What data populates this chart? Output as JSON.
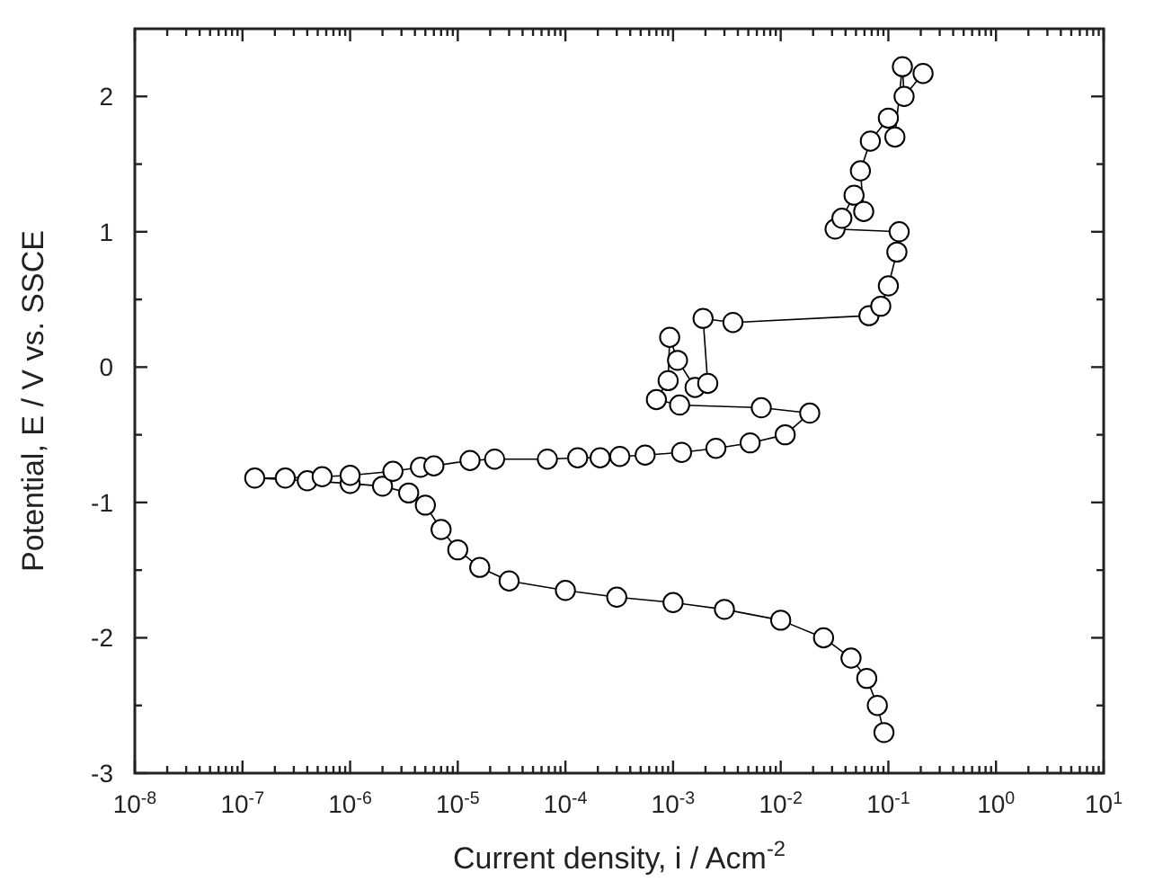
{
  "chart_data": {
    "type": "line",
    "xlabel": "Current density, i / Acm$^{-2}$",
    "ylabel": "Potential, E / V vs. SSCE",
    "log": "x",
    "marker": "circle",
    "line_style": "solid",
    "xlim": [
      1e-08,
      10
    ],
    "ylim": [
      -3,
      2.5
    ],
    "xticks": [
      {
        "value": 1e-08,
        "label": "10$^{-8}$"
      },
      {
        "value": 2e-08,
        "label": null
      },
      {
        "value": 3e-08,
        "label": null
      },
      {
        "value": 4e-08,
        "label": null
      },
      {
        "value": 5e-08,
        "label": null
      },
      {
        "value": 6e-08,
        "label": null
      },
      {
        "value": 7e-08,
        "label": null
      },
      {
        "value": 8e-08,
        "label": null
      },
      {
        "value": 9e-08,
        "label": null
      },
      {
        "value": 1e-07,
        "label": "10$^{-7}$"
      },
      {
        "value": 2e-07,
        "label": null
      },
      {
        "value": 3e-07,
        "label": null
      },
      {
        "value": 4e-07,
        "label": null
      },
      {
        "value": 5e-07,
        "label": null
      },
      {
        "value": 6e-07,
        "label": null
      },
      {
        "value": 7e-07,
        "label": null
      },
      {
        "value": 8e-07,
        "label": null
      },
      {
        "value": 9e-07,
        "label": null
      },
      {
        "value": 1e-06,
        "label": "10$^{-6}$"
      },
      {
        "value": 2e-06,
        "label": null
      },
      {
        "value": 3e-06,
        "label": null
      },
      {
        "value": 4e-06,
        "label": null
      },
      {
        "value": 5e-06,
        "label": null
      },
      {
        "value": 6e-06,
        "label": null
      },
      {
        "value": 7e-06,
        "label": null
      },
      {
        "value": 8e-06,
        "label": null
      },
      {
        "value": 9e-06,
        "label": null
      },
      {
        "value": 1e-05,
        "label": "10$^{-5}$"
      },
      {
        "value": 2e-05,
        "label": null
      },
      {
        "value": 3e-05,
        "label": null
      },
      {
        "value": 4e-05,
        "label": null
      },
      {
        "value": 5e-05,
        "label": null
      },
      {
        "value": 6e-05,
        "label": null
      },
      {
        "value": 7e-05,
        "label": null
      },
      {
        "value": 8e-05,
        "label": null
      },
      {
        "value": 9e-05,
        "label": null
      },
      {
        "value": 0.0001,
        "label": "10$^{-4}$"
      },
      {
        "value": 0.0002,
        "label": null
      },
      {
        "value": 0.0003,
        "label": null
      },
      {
        "value": 0.0004,
        "label": null
      },
      {
        "value": 0.0005,
        "label": null
      },
      {
        "value": 0.0006,
        "label": null
      },
      {
        "value": 0.0007,
        "label": null
      },
      {
        "value": 0.0008,
        "label": null
      },
      {
        "value": 0.0009,
        "label": null
      },
      {
        "value": 0.001,
        "label": "10$^{-3}$"
      },
      {
        "value": 0.002,
        "label": null
      },
      {
        "value": 0.003,
        "label": null
      },
      {
        "value": 0.004,
        "label": null
      },
      {
        "value": 0.005,
        "label": null
      },
      {
        "value": 0.006,
        "label": null
      },
      {
        "value": 0.007,
        "label": null
      },
      {
        "value": 0.008,
        "label": null
      },
      {
        "value": 0.009,
        "label": null
      },
      {
        "value": 0.01,
        "label": "10$^{-2}$"
      },
      {
        "value": 0.02,
        "label": null
      },
      {
        "value": 0.03,
        "label": null
      },
      {
        "value": 0.04,
        "label": null
      },
      {
        "value": 0.05,
        "label": null
      },
      {
        "value": 0.06,
        "label": null
      },
      {
        "value": 0.07,
        "label": null
      },
      {
        "value": 0.08,
        "label": null
      },
      {
        "value": 0.09,
        "label": null
      },
      {
        "value": 0.1,
        "label": "10$^{-1}$"
      },
      {
        "value": 0.2,
        "label": null
      },
      {
        "value": 0.3,
        "label": null
      },
      {
        "value": 0.4,
        "label": null
      },
      {
        "value": 0.5,
        "label": null
      },
      {
        "value": 0.6,
        "label": null
      },
      {
        "value": 0.7,
        "label": null
      },
      {
        "value": 0.8,
        "label": null
      },
      {
        "value": 0.9,
        "label": null
      },
      {
        "value": 1,
        "label": "10$^{0}$"
      },
      {
        "value": 2,
        "label": null
      },
      {
        "value": 3,
        "label": null
      },
      {
        "value": 4,
        "label": null
      },
      {
        "value": 5,
        "label": null
      },
      {
        "value": 6,
        "label": null
      },
      {
        "value": 7,
        "label": null
      },
      {
        "value": 8,
        "label": null
      },
      {
        "value": 9,
        "label": null
      },
      {
        "value": 10,
        "label": "10$^{1}$"
      }
    ],
    "yticks": [
      -3,
      {
        "value": -2.5,
        "label": null
      },
      -2,
      {
        "value": -1.5,
        "label": null
      },
      -1,
      {
        "value": -0.5,
        "label": null
      },
      0,
      {
        "value": 0.5,
        "label": null
      },
      1,
      {
        "value": 1.5,
        "label": null
      },
      2
    ],
    "series": [
      {
        "color": "#000000",
        "x": [
          0.091,
          0.079,
          0.063,
          0.045,
          0.025,
          0.01,
          0.003,
          0.001,
          0.0003,
          0.0001,
          3e-05,
          1.6e-05,
          1e-05,
          7e-06,
          5e-06,
          3.5e-06,
          2e-06,
          1e-06,
          4e-07,
          1.3e-07,
          2.5e-07,
          5.5e-07,
          1e-06,
          2.5e-06,
          4.5e-06,
          6e-06,
          1.3e-05,
          2.2e-05,
          6.8e-05,
          0.00013,
          0.00021,
          0.00032,
          0.00055,
          0.0012,
          0.0025,
          0.0052,
          0.011,
          0.0186,
          0.0066,
          0.00115,
          0.0007,
          0.0009,
          0.00093,
          0.0011,
          0.0016,
          0.0021,
          0.0019,
          0.0036,
          0.066,
          0.085,
          0.1,
          0.12,
          0.126,
          0.032,
          0.037,
          0.048,
          0.059,
          0.055,
          0.068,
          0.1,
          0.115,
          0.135,
          0.14,
          0.21
        ],
        "values": [
          -2.7,
          -2.5,
          -2.3,
          -2.15,
          -2.0,
          -1.87,
          -1.79,
          -1.74,
          -1.7,
          -1.65,
          -1.58,
          -1.48,
          -1.35,
          -1.2,
          -1.02,
          -0.93,
          -0.88,
          -0.86,
          -0.84,
          -0.82,
          -0.82,
          -0.81,
          -0.8,
          -0.77,
          -0.74,
          -0.73,
          -0.69,
          -0.68,
          -0.68,
          -0.67,
          -0.67,
          -0.66,
          -0.65,
          -0.63,
          -0.6,
          -0.56,
          -0.5,
          -0.34,
          -0.3,
          -0.28,
          -0.24,
          -0.1,
          0.22,
          0.05,
          -0.15,
          -0.12,
          0.36,
          0.33,
          0.38,
          0.45,
          0.6,
          0.85,
          1.0,
          1.02,
          1.1,
          1.27,
          1.15,
          1.45,
          1.67,
          1.84,
          1.7,
          2.22,
          2.0,
          2.17
        ]
      }
    ]
  }
}
